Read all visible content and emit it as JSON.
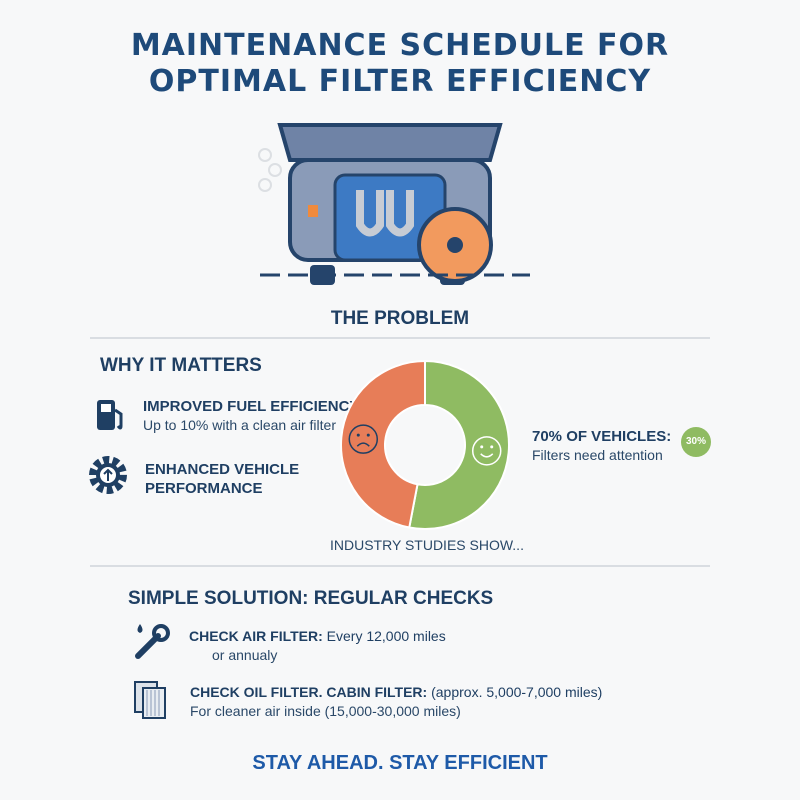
{
  "title_line1": "MAINTENANCE SCHEDULE FOR",
  "title_line2": "OPTIMAL FILTER EFFICIENCY",
  "problem_heading": "THE PROBLEM",
  "why": {
    "heading": "WHY IT MATTERS",
    "items": [
      {
        "icon": "fuel-pump-icon",
        "title": "IMPROVED FUEL EFFICIENCY:",
        "text": "Up to 10% with a clean air filter"
      },
      {
        "icon": "gear-arrow-up-icon",
        "title_line1": "ENHANCED VEHICLE",
        "title_line2": "PERFORMANCE"
      }
    ]
  },
  "chart_data": {
    "type": "pie",
    "donut": true,
    "caption": "INDUSTRY STUDIES SHOW...",
    "slices": [
      {
        "icon": "happy-face-icon",
        "value": 53,
        "color": "#8fbb62"
      },
      {
        "icon": "sad-face-icon",
        "value": 47,
        "color": "#e77d58"
      }
    ]
  },
  "stat": {
    "title": "70% OF VEHICLES:",
    "text": "Filters need attention",
    "badge": "30%",
    "badge_color": "#8fbb62"
  },
  "solution": {
    "heading": "SIMPLE SOLUTION: REGULAR CHECKS",
    "items": [
      {
        "icon": "wrench-drop-icon",
        "title": "CHECK AIR FILTER:",
        "text": " Every 12,000 miles",
        "text2": "or annualy"
      },
      {
        "icon": "filter-icon",
        "title": "CHECK OIL FILTER. CABIN FILTER:",
        "text": " (approx. 5,000-7,000 miles)",
        "text2": "For cleaner air inside (15,000-30,000 miles)"
      }
    ]
  },
  "footer": "STAY AHEAD. STAY EFFICIENT"
}
